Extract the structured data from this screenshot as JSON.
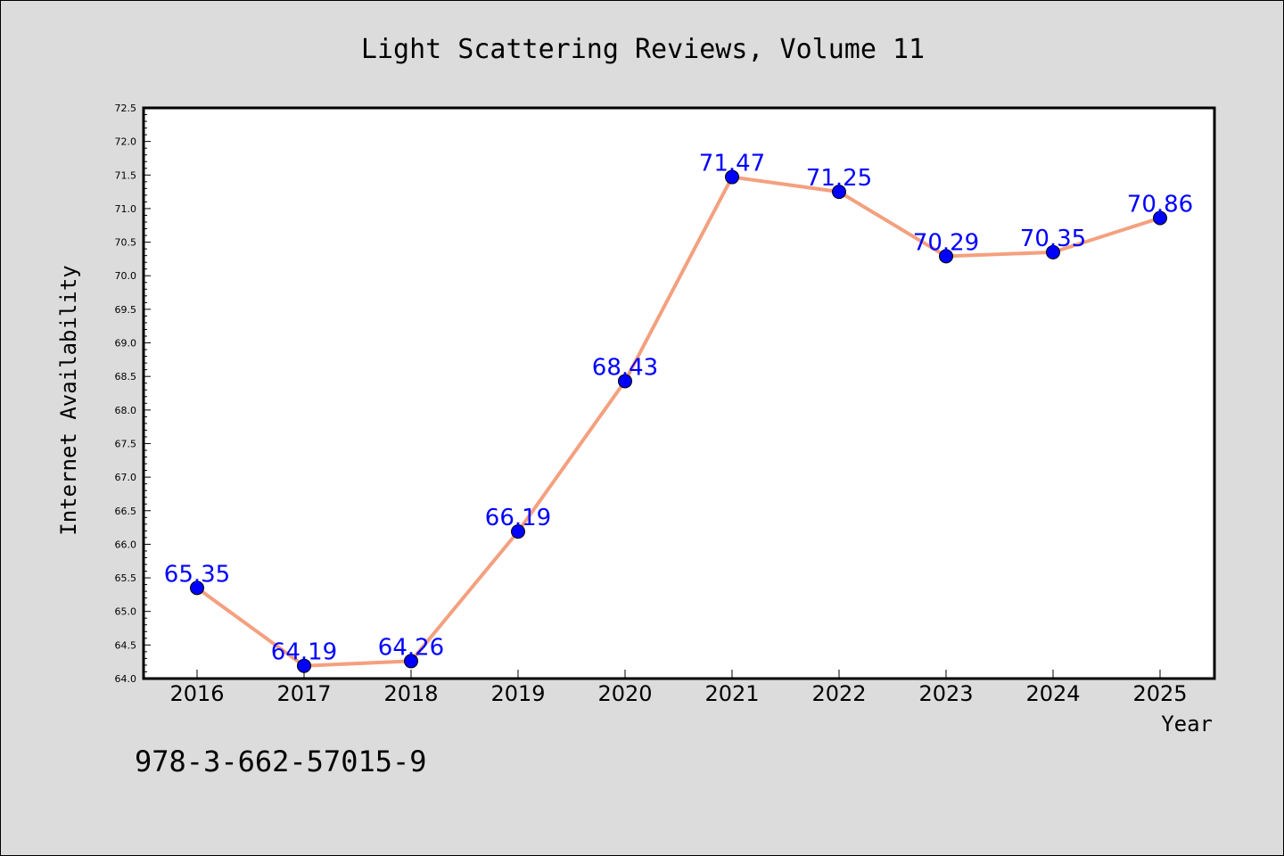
{
  "chart_data": {
    "type": "line",
    "title": "Light Scattering Reviews, Volume 11",
    "xlabel": "Year",
    "ylabel": "Internet Availability",
    "categories": [
      "2016",
      "2017",
      "2018",
      "2019",
      "2020",
      "2021",
      "2022",
      "2023",
      "2024",
      "2025"
    ],
    "series": [
      {
        "values": [
          65.35,
          64.19,
          64.26,
          66.19,
          68.43,
          71.47,
          71.25,
          70.29,
          70.35,
          70.86
        ],
        "labels": [
          "65.35",
          "64.19",
          "64.26",
          "66.19",
          "68.43",
          "71.47",
          "71.25",
          "70.29",
          "70.35",
          "70.86"
        ],
        "line_color": "#f4a07f",
        "marker_color": "#0000ff"
      }
    ],
    "ylim": [
      64.0,
      72.5
    ],
    "yticks": [
      "64.0",
      "64.5",
      "65.0",
      "65.5",
      "66.0",
      "66.5",
      "67.0",
      "67.5",
      "68.0",
      "68.5",
      "69.0",
      "69.5",
      "70.0",
      "70.5",
      "71.0",
      "71.5",
      "72.0",
      "72.5"
    ],
    "grid": false,
    "legend": "none"
  },
  "annotation": "978-3-662-57015-9",
  "colors": {
    "background": "#dcdcdc",
    "plot_background": "#ffffff",
    "label_color": "#0000ff"
  }
}
